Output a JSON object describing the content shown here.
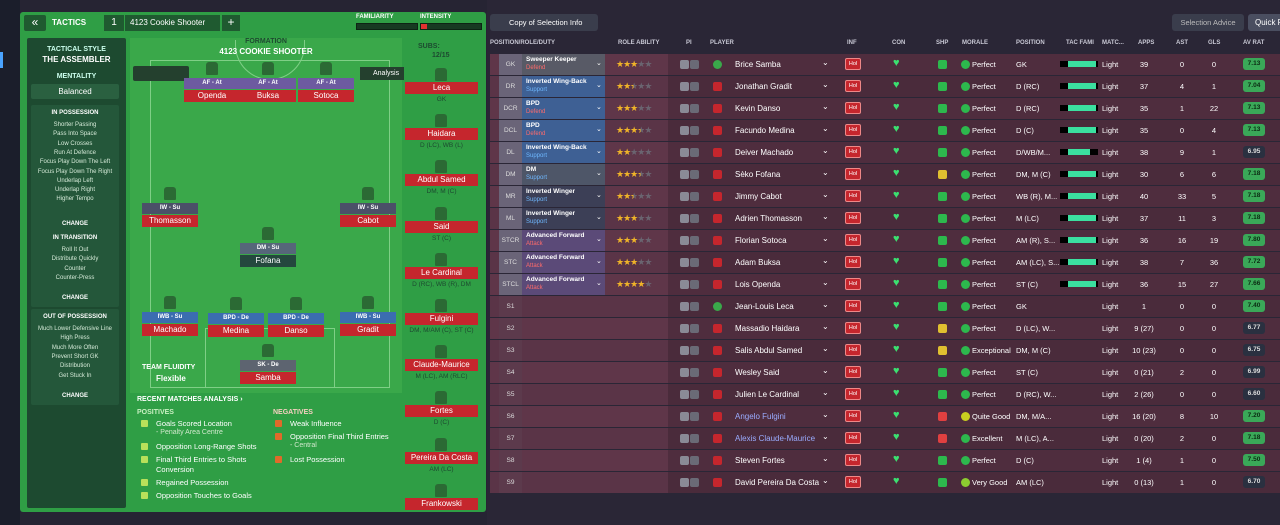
{
  "top_bar": {
    "back": "«",
    "tactics_label": "TACTICS",
    "slot": "1",
    "tactic_name": "4123 Cookie Shooter",
    "add": "+",
    "familiarity": "FAMILIARITY",
    "intensity": "INTENSITY"
  },
  "sidebar": {
    "style_label": "TACTICAL STYLE",
    "style": "THE ASSEMBLER",
    "mentality_label": "MENTALITY",
    "mentality": "Balanced",
    "sections": [
      {
        "title": "IN POSSESSION",
        "items": [
          "Shorter Passing",
          "Pass Into Space",
          "Low Crosses",
          "Run At Defence",
          "Focus Play Down The Left",
          "Focus Play Down The Right",
          "Underlap Left",
          "Underlap Right",
          "Higher Tempo"
        ],
        "button": "CHANGE"
      },
      {
        "title": "IN TRANSITION",
        "items": [
          "Roll It Out",
          "Distribute Quickly",
          "Counter",
          "Counter-Press"
        ],
        "button": "CHANGE"
      },
      {
        "title": "OUT OF POSSESSION",
        "items": [
          "Much Lower Defensive Line",
          "High Press",
          "Much More Often",
          "Prevent Short GK",
          "Distribution",
          "Get Stuck In"
        ],
        "button": "CHANGE"
      }
    ]
  },
  "pitch": {
    "formation_label": "FORMATION",
    "formation": "4123 COOKIE SHOOTER",
    "analysis": "Analysis",
    "fluidity_label": "TEAM FLUIDITY",
    "fluidity": "Flexible",
    "players": [
      {
        "role": "AF - At",
        "name": "Openda"
      },
      {
        "role": "AF - At",
        "name": "Buksa"
      },
      {
        "role": "AF - At",
        "name": "Sotoca"
      },
      {
        "role": "IW - Su",
        "name": "Thomasson"
      },
      {
        "role": "IW - Su",
        "name": "Cabot"
      },
      {
        "role": "DM - Su",
        "name": "Fofana"
      },
      {
        "role": "IWB - Su",
        "name": "Machado"
      },
      {
        "role": "BPD - De",
        "name": "Medina"
      },
      {
        "role": "BPD - De",
        "name": "Danso"
      },
      {
        "role": "IWB - Su",
        "name": "Gradit"
      },
      {
        "role": "SK - De",
        "name": "Samba"
      }
    ]
  },
  "subs": {
    "label": "SUBS:",
    "count": "12/15",
    "players": [
      {
        "name": "Leca",
        "positions": "GK"
      },
      {
        "name": "Haidara",
        "positions": "D (LC), WB (L)"
      },
      {
        "name": "Abdul Samed",
        "positions": "DM, M (C)"
      },
      {
        "name": "Said",
        "positions": "ST (C)"
      },
      {
        "name": "Le Cardinal",
        "positions": "D (RC), WB (R), DM"
      },
      {
        "name": "Fulgini",
        "positions": "DM, M/AM (C), ST (C)"
      },
      {
        "name": "Claude-Maurice",
        "positions": "M (LC), AM (RLC)"
      },
      {
        "name": "Fortes",
        "positions": "D (C)"
      },
      {
        "name": "Pereira Da Costa",
        "positions": "AM (LC)"
      },
      {
        "name": "Frankowski"
      }
    ]
  },
  "analysis": {
    "title": "RECENT MATCHES ANALYSIS ›",
    "positives_label": "POSITIVES",
    "positives": [
      {
        "text": "Goals Scored Location",
        "detail": "- Penalty Area Centre"
      },
      {
        "text": "Opposition Long-Range Shots"
      },
      {
        "text": "Final Third Entries to Shots Conversion"
      },
      {
        "text": "Regained Possession"
      },
      {
        "text": "Opposition Touches to Goals"
      }
    ],
    "negatives_label": "NEGATIVES",
    "negatives": [
      {
        "text": "Weak Influence"
      },
      {
        "text": "Opposition Final Third Entries",
        "detail": "- Central"
      },
      {
        "text": "Lost Possession"
      }
    ]
  },
  "toolbar": {
    "copy": "Copy of Selection Info",
    "advice": "Selection Advice",
    "quick": "Quick Pick"
  },
  "table": {
    "columns": [
      "POSITION/ROLE/DUTY",
      "ROLE ABILITY",
      "PI",
      "PLAYER",
      "INF",
      "CON",
      "SHP",
      "MORALE",
      "POSITION",
      "TAC FAMI",
      "MATC...",
      "APPS",
      "AST",
      "GLS",
      "AV RAT"
    ],
    "rows": [
      {
        "slot": "GK",
        "role": "Sweeper Keeper",
        "duty": "Defend",
        "stars": 3,
        "player": "Brice Samba",
        "inf": "Hol",
        "morale": "Perfect",
        "position": "GK",
        "match": "Light",
        "apps": 39,
        "ast": 0,
        "gls": 0,
        "rating": "7.13"
      },
      {
        "slot": "DR",
        "role": "Inverted Wing-Back",
        "duty": "Support",
        "stars": 2.5,
        "player": "Jonathan Gradit",
        "inf": "Hol",
        "morale": "Perfect",
        "position": "D (RC)",
        "match": "Light",
        "apps": 37,
        "ast": 4,
        "gls": 1,
        "rating": "7.04"
      },
      {
        "slot": "DCR",
        "role": "BPD",
        "duty": "Defend",
        "stars": 3,
        "player": "Kevin Danso",
        "inf": "Hol",
        "morale": "Perfect",
        "position": "D (RC)",
        "match": "Light",
        "apps": 35,
        "ast": 1,
        "gls": 22,
        "rating": "7.13"
      },
      {
        "slot": "DCL",
        "role": "BPD",
        "duty": "Defend",
        "stars": 3.5,
        "player": "Facundo Medina",
        "inf": "Hol",
        "morale": "Perfect",
        "position": "D (C)",
        "match": "Light",
        "apps": 35,
        "ast": 0,
        "gls": 4,
        "rating": "7.13"
      },
      {
        "slot": "DL",
        "role": "Inverted Wing-Back",
        "duty": "Support",
        "stars": 2,
        "player": "Deiver Machado",
        "inf": "Hol",
        "morale": "Perfect",
        "position": "D/WB/M...",
        "match": "Light",
        "apps": 38,
        "ast": 9,
        "gls": 1,
        "rating": "6.95"
      },
      {
        "slot": "DM",
        "role": "DM",
        "duty": "Support",
        "stars": 3.5,
        "player": "Sèko Fofana",
        "inf": "Hol",
        "morale": "Perfect",
        "position": "DM, M (C)",
        "match": "Light",
        "apps": 30,
        "ast": 6,
        "gls": 6,
        "rating": "7.18"
      },
      {
        "slot": "MR",
        "role": "Inverted Winger",
        "duty": "Support",
        "stars": 2.5,
        "player": "Jimmy Cabot",
        "inf": "Hol",
        "morale": "Perfect",
        "position": "WB (R), M...",
        "match": "Light",
        "apps": 40,
        "ast": 33,
        "gls": 5,
        "rating": "7.18"
      },
      {
        "slot": "ML",
        "role": "Inverted Winger",
        "duty": "Support",
        "stars": 3,
        "player": "Adrien Thomasson",
        "inf": "Hol",
        "morale": "Perfect",
        "position": "M (LC)",
        "match": "Light",
        "apps": 37,
        "ast": 11,
        "gls": 3,
        "rating": "7.18"
      },
      {
        "slot": "STCR",
        "role": "Advanced Forward",
        "duty": "Attack",
        "stars": 3,
        "player": "Florian Sotoca",
        "inf": "Hol",
        "morale": "Perfect",
        "position": "AM (R), S...",
        "match": "Light",
        "apps": 36,
        "ast": 16,
        "gls": 19,
        "rating": "7.80"
      },
      {
        "slot": "STC",
        "role": "Advanced Forward",
        "duty": "Attack",
        "stars": 3,
        "player": "Adam Buksa",
        "inf": "Hol",
        "morale": "Perfect",
        "position": "AM (LC), S...",
        "match": "Light",
        "apps": 38,
        "ast": 7,
        "gls": 36,
        "rating": "7.72"
      },
      {
        "slot": "STCL",
        "role": "Advanced Forward",
        "duty": "Attack",
        "stars": 4,
        "player": "Lois Openda",
        "inf": "Hol",
        "morale": "Perfect",
        "position": "ST (C)",
        "match": "Light",
        "apps": 36,
        "ast": 15,
        "gls": 27,
        "rating": "7.66"
      },
      {
        "slot": "S1",
        "player": "Jean-Louis Leca",
        "inf": "Hol",
        "morale": "Perfect",
        "position": "GK",
        "match": "Light",
        "apps": 1,
        "ast": 0,
        "gls": 0,
        "rating": "7.40"
      },
      {
        "slot": "S2",
        "player": "Massadio Haidara",
        "inf": "Hol",
        "morale": "Perfect",
        "position": "D (LC), W...",
        "match": "Light",
        "apps": "9 (27)",
        "ast": 0,
        "gls": 0,
        "rating": "6.77"
      },
      {
        "slot": "S3",
        "player": "Salis Abdul Samed",
        "inf": "Hol",
        "morale": "Exceptional",
        "position": "DM, M (C)",
        "match": "Light",
        "apps": "10 (23)",
        "ast": 0,
        "gls": 0,
        "rating": "6.75"
      },
      {
        "slot": "S4",
        "player": "Wesley Said",
        "inf": "Hol",
        "morale": "Perfect",
        "position": "ST (C)",
        "match": "Light",
        "apps": "0 (21)",
        "ast": 2,
        "gls": 0,
        "rating": "6.99"
      },
      {
        "slot": "S5",
        "player": "Julien Le Cardinal",
        "inf": "Hol",
        "morale": "Perfect",
        "position": "D (RC), W...",
        "match": "Light",
        "apps": "2 (26)",
        "ast": 0,
        "gls": 0,
        "rating": "6.60"
      },
      {
        "slot": "S6",
        "player": "Angelo Fulgini",
        "inf": "Hol",
        "morale": "Quite Good",
        "position": "DM, M/A...",
        "match": "Light",
        "apps": "16 (20)",
        "ast": 8,
        "gls": 10,
        "rating": "7.20"
      },
      {
        "slot": "S7",
        "player": "Alexis Claude-Maurice",
        "inf": "Hol",
        "morale": "Excellent",
        "position": "M (LC), A...",
        "match": "Light",
        "apps": "0 (20)",
        "ast": 2,
        "gls": 0,
        "rating": "7.18"
      },
      {
        "slot": "S8",
        "player": "Steven Fortes",
        "inf": "Hol",
        "morale": "Perfect",
        "position": "D (C)",
        "match": "Light",
        "apps": "1 (4)",
        "ast": 1,
        "gls": 0,
        "rating": "7.50"
      },
      {
        "slot": "S9",
        "player": "David Pereira Da Costa",
        "inf": "Hol",
        "morale": "Very Good",
        "position": "AM (LC)",
        "match": "Light",
        "apps": "0 (13)",
        "ast": 1,
        "gls": 0,
        "rating": "6.70"
      }
    ]
  }
}
